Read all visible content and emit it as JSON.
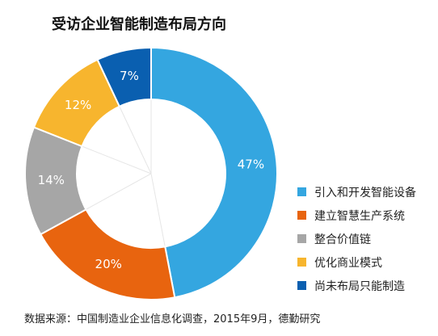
{
  "chart_data": {
    "type": "pie",
    "donut": true,
    "title": "受访企业智能制造布局方向",
    "categories": [
      "引入和开发智能设备",
      "建立智慧生产系统",
      "整合价值链",
      "优化商业模式",
      "尚未布局只能制造"
    ],
    "values": [
      47,
      20,
      14,
      12,
      7
    ],
    "value_labels": [
      "47%",
      "20%",
      "14%",
      "12%",
      "7%"
    ],
    "colors": [
      "#34A6E0",
      "#E8640F",
      "#A6A6A6",
      "#F7B52E",
      "#0A5FB0"
    ],
    "legend_position": "right"
  },
  "source": "数据来源：中国制造业企业信息化调查，2015年9月，德勤研究"
}
